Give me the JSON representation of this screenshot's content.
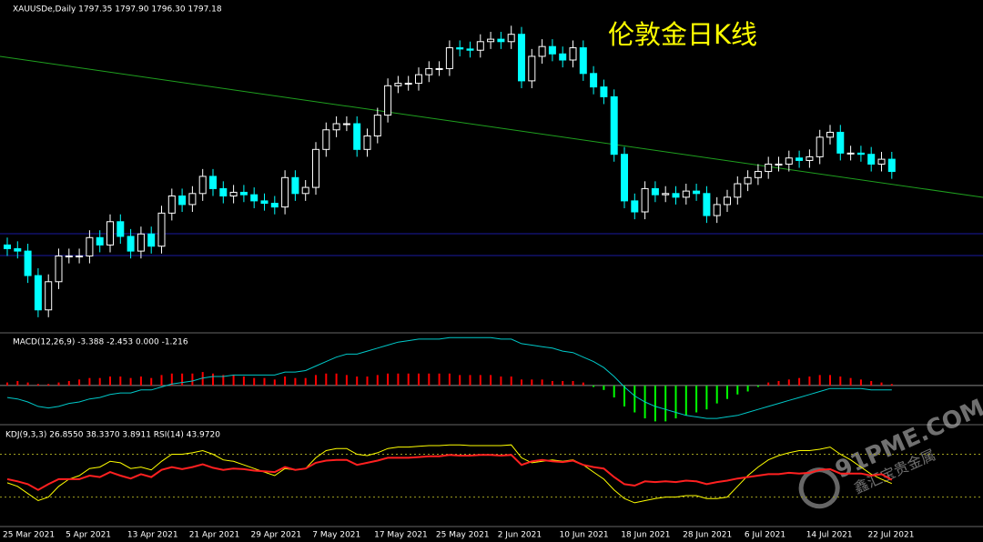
{
  "chart_data": [
    {
      "type": "candlestick",
      "title": "XAUUSDe,Daily  1797.35 1797.90 1796.30 1797.18",
      "annotation": "伦敦金日K线",
      "categories": [
        "25 Mar 2021",
        null,
        null,
        null,
        null,
        null,
        null,
        "5 Apr 2021",
        null,
        null,
        null,
        null,
        null,
        "13 Apr 2021",
        null,
        null,
        null,
        null,
        null,
        "21 Apr 2021",
        null,
        null,
        null,
        null,
        null,
        "29 Apr 2021",
        null,
        null,
        null,
        null,
        null,
        "7 May 2021",
        null,
        null,
        null,
        null,
        null,
        "17 May 2021",
        null,
        null,
        null,
        null,
        null,
        "25 May 2021",
        null,
        null,
        null,
        null,
        null,
        "2 Jun 2021",
        null,
        null,
        null,
        null,
        null,
        "10 Jun 2021",
        null,
        null,
        null,
        null,
        null,
        "18 Jun 2021",
        null,
        null,
        null,
        null,
        null,
        "28 Jun 2021",
        null,
        null,
        null,
        null,
        null,
        "6 Jul 2021",
        null,
        null,
        null,
        null,
        null,
        "14 Jul 2021",
        null,
        null,
        null,
        null,
        null,
        "22 Jul 2021",
        null
      ],
      "open": [
        1737,
        1734,
        1732,
        1712,
        1684,
        1707,
        1728,
        1728,
        1728,
        1743,
        1737,
        1756,
        1744,
        1732,
        1746,
        1736,
        1763,
        1777,
        1770,
        1779,
        1793,
        1783,
        1777,
        1780,
        1778,
        1773,
        1771,
        1768,
        1792,
        1779,
        1784,
        1815,
        1831,
        1836,
        1836,
        1815,
        1826,
        1843,
        1867,
        1869,
        1869,
        1876,
        1881,
        1881,
        1898,
        1897,
        1896,
        1903,
        1905,
        1903,
        1909,
        1871,
        1891,
        1899,
        1893,
        1888,
        1898,
        1877,
        1866,
        1858,
        1811,
        1773,
        1764,
        1783,
        1778,
        1779,
        1776,
        1781,
        1779,
        1761,
        1770,
        1776,
        1787,
        1792,
        1797,
        1803,
        1803,
        1808,
        1806,
        1809,
        1825,
        1829,
        1812,
        1812,
        1811,
        1803,
        1807
      ],
      "high": [
        1743,
        1740,
        1738,
        1718,
        1713,
        1734,
        1734,
        1734,
        1749,
        1749,
        1762,
        1762,
        1750,
        1752,
        1752,
        1769,
        1783,
        1783,
        1785,
        1799,
        1799,
        1789,
        1786,
        1786,
        1784,
        1779,
        1777,
        1798,
        1798,
        1790,
        1821,
        1837,
        1842,
        1842,
        1842,
        1832,
        1849,
        1873,
        1875,
        1875,
        1882,
        1887,
        1887,
        1904,
        1904,
        1903,
        1909,
        1911,
        1911,
        1916,
        1915,
        1897,
        1905,
        1905,
        1899,
        1904,
        1904,
        1883,
        1872,
        1864,
        1817,
        1779,
        1789,
        1789,
        1785,
        1785,
        1787,
        1787,
        1785,
        1776,
        1782,
        1793,
        1798,
        1803,
        1809,
        1809,
        1814,
        1814,
        1815,
        1831,
        1835,
        1835,
        1818,
        1818,
        1817,
        1813,
        1813
      ],
      "low": [
        1728,
        1726,
        1706,
        1678,
        1678,
        1701,
        1722,
        1722,
        1722,
        1731,
        1731,
        1738,
        1726,
        1726,
        1730,
        1730,
        1757,
        1764,
        1764,
        1773,
        1777,
        1771,
        1771,
        1772,
        1767,
        1765,
        1762,
        1762,
        1773,
        1773,
        1778,
        1809,
        1825,
        1830,
        1809,
        1809,
        1820,
        1837,
        1861,
        1863,
        1863,
        1870,
        1875,
        1875,
        1891,
        1890,
        1890,
        1897,
        1897,
        1897,
        1865,
        1865,
        1885,
        1887,
        1882,
        1882,
        1871,
        1860,
        1852,
        1805,
        1767,
        1758,
        1758,
        1772,
        1772,
        1770,
        1770,
        1773,
        1755,
        1755,
        1764,
        1770,
        1781,
        1786,
        1791,
        1797,
        1797,
        1800,
        1800,
        1803,
        1819,
        1806,
        1806,
        1805,
        1797,
        1797,
        1791
      ],
      "close": [
        1734,
        1732,
        1712,
        1684,
        1707,
        1728,
        1728,
        1728,
        1743,
        1737,
        1756,
        1744,
        1732,
        1746,
        1736,
        1763,
        1777,
        1770,
        1779,
        1793,
        1783,
        1777,
        1780,
        1778,
        1773,
        1771,
        1768,
        1792,
        1779,
        1784,
        1815,
        1831,
        1836,
        1836,
        1815,
        1826,
        1843,
        1867,
        1869,
        1869,
        1876,
        1881,
        1881,
        1898,
        1897,
        1896,
        1903,
        1905,
        1903,
        1909,
        1871,
        1891,
        1899,
        1893,
        1888,
        1898,
        1877,
        1866,
        1858,
        1811,
        1773,
        1764,
        1783,
        1778,
        1779,
        1776,
        1781,
        1779,
        1761,
        1770,
        1776,
        1787,
        1792,
        1797,
        1803,
        1803,
        1808,
        1806,
        1809,
        1825,
        1829,
        1812,
        1812,
        1811,
        1803,
        1807,
        1797
      ],
      "ylim": [
        1666,
        1937
      ],
      "up_color": "#000000",
      "down_color": "#00ffff",
      "outline_color": "#ffffff"
    },
    {
      "type": "macd",
      "title": "MACD(12,26,9) -3.388 -2.453 0.000 -1.216",
      "values": [
        2,
        3,
        2,
        1,
        1,
        2,
        3,
        4,
        5,
        5,
        6,
        6,
        5,
        6,
        5,
        7,
        8,
        8,
        8,
        9,
        8,
        7,
        7,
        6,
        5,
        5,
        4,
        6,
        5,
        5,
        7,
        8,
        8,
        7,
        6,
        6,
        7,
        8,
        8,
        8,
        8,
        8,
        8,
        8,
        7,
        7,
        7,
        7,
        6,
        6,
        4,
        4,
        4,
        3,
        3,
        3,
        2,
        -1,
        -3,
        -8,
        -14,
        -18,
        -22,
        -24,
        -24,
        -22,
        -20,
        -18,
        -16,
        -12,
        -9,
        -6,
        -4,
        -1,
        2,
        3,
        4,
        5,
        6,
        7,
        7,
        6,
        5,
        4,
        3,
        2,
        1
      ],
      "colors": {
        "positive": "#ff0000",
        "negative": "#00ff00"
      },
      "series": [
        {
          "color": "#00c8c8",
          "values": [
            -8,
            -9,
            -11,
            -14,
            -15,
            -14,
            -12,
            -11,
            -9,
            -8,
            -6,
            -5,
            -5,
            -3,
            -3,
            -1,
            1,
            2,
            3,
            5,
            6,
            6,
            7,
            7,
            7,
            7,
            7,
            9,
            9,
            10,
            13,
            16,
            19,
            21,
            21,
            23,
            25,
            27,
            29,
            30,
            31,
            31,
            31,
            32,
            32,
            32,
            32,
            32,
            31,
            31,
            28,
            27,
            26,
            25,
            23,
            22,
            19,
            16,
            12,
            6,
            -1,
            -7,
            -11,
            -14,
            -16,
            -18,
            -20,
            -21,
            -22,
            -22,
            -21,
            -20,
            -18,
            -16,
            -14,
            -12,
            -10,
            -8,
            -6,
            -4,
            -2,
            -2,
            -2,
            -2,
            -3,
            -3,
            -3
          ]
        }
      ],
      "ylim": [
        -25,
        34
      ]
    },
    {
      "type": "line",
      "title": "KDJ(9,3,3) 26.8550 38.3370 3.8911  RSI(14) 43.9720",
      "series": [
        {
          "color": "#ffff00",
          "values": [
            40,
            35,
            25,
            15,
            20,
            35,
            45,
            50,
            60,
            62,
            70,
            68,
            60,
            62,
            58,
            70,
            80,
            80,
            82,
            85,
            80,
            72,
            70,
            65,
            60,
            55,
            50,
            60,
            58,
            60,
            75,
            85,
            88,
            88,
            80,
            78,
            82,
            88,
            90,
            90,
            91,
            92,
            92,
            93,
            93,
            92,
            92,
            92,
            92,
            93,
            75,
            68,
            70,
            72,
            70,
            72,
            65,
            55,
            45,
            30,
            18,
            12,
            15,
            18,
            20,
            20,
            22,
            22,
            18,
            18,
            20,
            35,
            50,
            62,
            72,
            78,
            82,
            85,
            85,
            87,
            90,
            80,
            72,
            62,
            52,
            45,
            39
          ]
        },
        {
          "color": "#ff2020",
          "values": [
            45,
            42,
            38,
            30,
            38,
            45,
            45,
            45,
            50,
            48,
            55,
            50,
            46,
            52,
            48,
            58,
            62,
            59,
            62,
            66,
            61,
            58,
            60,
            59,
            57,
            56,
            55,
            62,
            58,
            60,
            68,
            71,
            72,
            72,
            65,
            68,
            71,
            75,
            75,
            75,
            76,
            77,
            77,
            79,
            78,
            78,
            79,
            79,
            78,
            79,
            65,
            70,
            72,
            70,
            69,
            71,
            65,
            62,
            60,
            48,
            38,
            36,
            42,
            41,
            42,
            41,
            43,
            42,
            38,
            41,
            43,
            46,
            48,
            50,
            52,
            52,
            54,
            53,
            54,
            58,
            59,
            53,
            53,
            53,
            50,
            52,
            44
          ]
        }
      ],
      "levels": [
        20,
        80
      ],
      "ylim": [
        -20,
        117.5
      ]
    }
  ],
  "watermark": {
    "site": "91PME.COM",
    "name": "鑫汇宝贵金属"
  }
}
